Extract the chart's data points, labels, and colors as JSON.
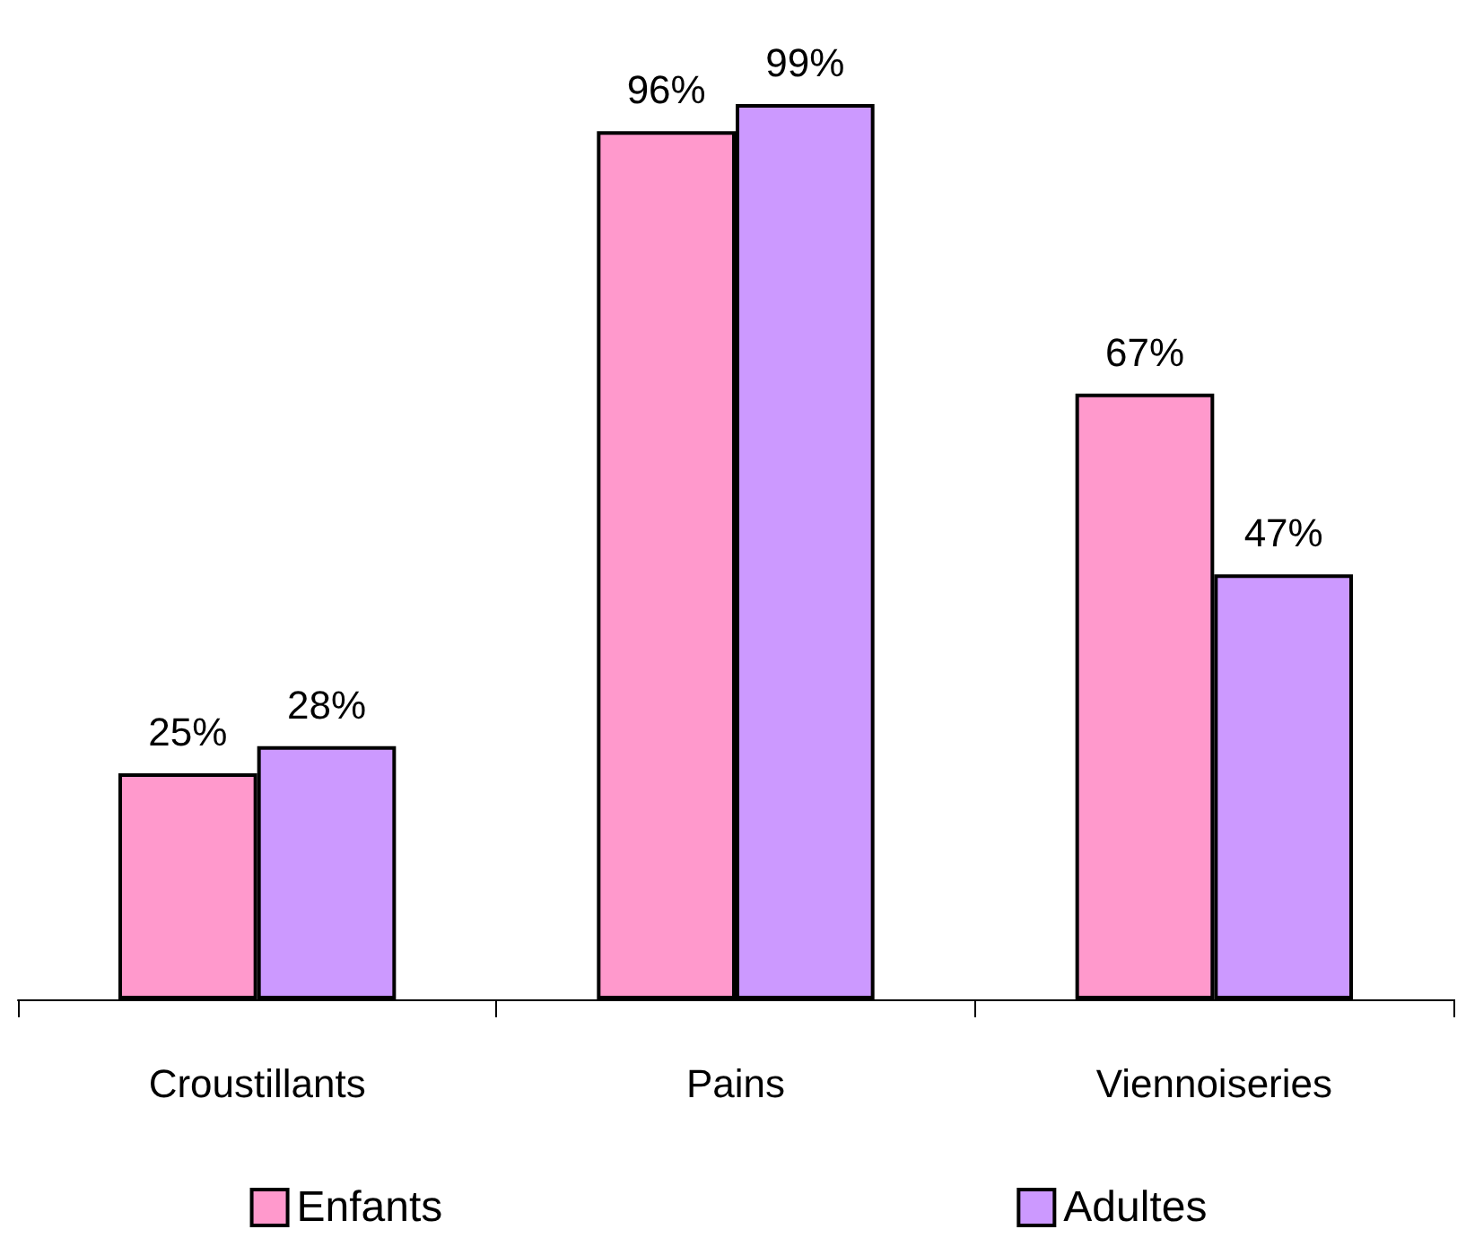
{
  "chart_data": {
    "type": "bar",
    "categories": [
      "Croustillants",
      "Pains",
      "Viennoiseries"
    ],
    "series": [
      {
        "name": "Enfants",
        "color": "#ff99cc",
        "values": [
          25,
          96,
          67
        ],
        "value_labels": [
          "25%",
          "96%",
          "67%"
        ]
      },
      {
        "name": "Adultes",
        "color": "#cc99ff",
        "values": [
          28,
          99,
          47
        ],
        "value_labels": [
          "28%",
          "99%",
          "47%"
        ]
      }
    ],
    "legend": "bottom"
  }
}
